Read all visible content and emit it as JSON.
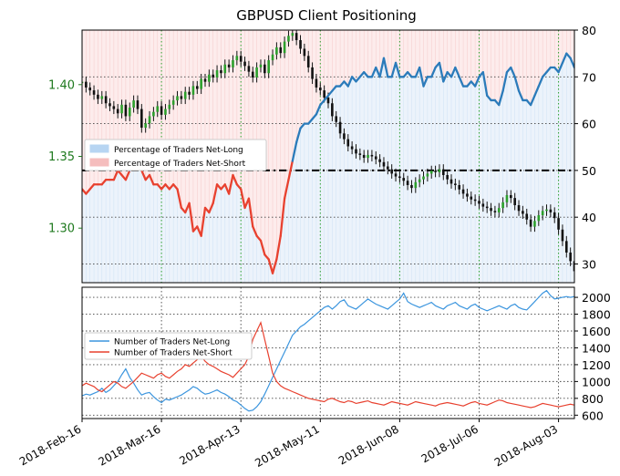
{
  "chart_data": [
    {
      "type": "line",
      "title": "GBPUSD Client Positioning",
      "legend": {
        "placement": "center-left",
        "entries": [
          {
            "label": "Percentage of Traders Net-Long",
            "color": "#9fc7ee"
          },
          {
            "label": "Percentage of Traders Net-Short",
            "color": "#f2a8a8"
          }
        ]
      },
      "y_left": {
        "ticks": [
          "1.30",
          "1.35",
          "1.40"
        ],
        "range": [
          1.262,
          1.438
        ],
        "color": "#1f7a1f"
      },
      "y_right": {
        "ticks": [
          "30",
          "40",
          "50",
          "60",
          "70",
          "80"
        ],
        "range": [
          26,
          80
        ]
      },
      "reference_line": 50,
      "x_ticks": [
        "2018-Feb-16",
        "2018-Mar-16",
        "2018-Apr-13",
        "2018-May-11",
        "2018-Jun-08",
        "2018-Jul-06",
        "2018-Aug-03"
      ],
      "n_days": 125,
      "price_close": [
        1.402,
        1.398,
        1.396,
        1.393,
        1.39,
        1.392,
        1.387,
        1.385,
        1.383,
        1.38,
        1.386,
        1.378,
        1.384,
        1.389,
        1.383,
        1.37,
        1.373,
        1.378,
        1.381,
        1.385,
        1.379,
        1.383,
        1.386,
        1.389,
        1.392,
        1.39,
        1.395,
        1.393,
        1.399,
        1.397,
        1.404,
        1.402,
        1.407,
        1.405,
        1.41,
        1.408,
        1.414,
        1.412,
        1.417,
        1.42,
        1.416,
        1.413,
        1.409,
        1.405,
        1.412,
        1.414,
        1.408,
        1.417,
        1.421,
        1.426,
        1.422,
        1.43,
        1.434,
        1.436,
        1.431,
        1.425,
        1.42,
        1.412,
        1.404,
        1.398,
        1.396,
        1.391,
        1.387,
        1.378,
        1.374,
        1.366,
        1.362,
        1.357,
        1.355,
        1.352,
        1.351,
        1.349,
        1.351,
        1.35,
        1.348,
        1.346,
        1.343,
        1.341,
        1.338,
        1.336,
        1.335,
        1.333,
        1.33,
        1.328,
        1.332,
        1.334,
        1.336,
        1.338,
        1.34,
        1.339,
        1.341,
        1.337,
        1.334,
        1.331,
        1.33,
        1.327,
        1.324,
        1.322,
        1.32,
        1.319,
        1.317,
        1.315,
        1.314,
        1.312,
        1.311,
        1.314,
        1.318,
        1.323,
        1.321,
        1.316,
        1.312,
        1.31,
        1.306,
        1.301,
        1.305,
        1.309,
        1.312,
        1.313,
        1.311,
        1.307,
        1.299,
        1.291,
        1.283,
        1.277,
        1.27
      ],
      "series": [
        {
          "name": "Percentage of Traders Net-Long",
          "y_axis": "right",
          "values": [
            46,
            45,
            46,
            47,
            47,
            47,
            48,
            48,
            48,
            50,
            49,
            48,
            50,
            52,
            51,
            50,
            48,
            49,
            47,
            47,
            46,
            47,
            46,
            47,
            46,
            42,
            41,
            43,
            37,
            38,
            36,
            42,
            41,
            43,
            47,
            46,
            47,
            45,
            49,
            47,
            46,
            42,
            44,
            38,
            36,
            35,
            32,
            31,
            28,
            31,
            36,
            44,
            48,
            52,
            56,
            59,
            60,
            60,
            61,
            62,
            64,
            65,
            66,
            67,
            68,
            68,
            69,
            68,
            70,
            69,
            70,
            71,
            70,
            70,
            72,
            70,
            74,
            70,
            70,
            73,
            70,
            70,
            71,
            70,
            70,
            72,
            68,
            70,
            70,
            72,
            73,
            69,
            71,
            70,
            72,
            70,
            68,
            68,
            69,
            68,
            70,
            71,
            66,
            65,
            65,
            64,
            67,
            71,
            72,
            70,
            67,
            65,
            65,
            64,
            66,
            68,
            70,
            71,
            72,
            72,
            71,
            73,
            75,
            74,
            72
          ]
        },
        {
          "name": "Number of Traders Net-Long",
          "values": [
            830,
            850,
            840,
            860,
            880,
            920,
            870,
            900,
            950,
            1000,
            1080,
            1150,
            1050,
            980,
            900,
            840,
            860,
            870,
            820,
            780,
            750,
            790,
            780,
            800,
            820,
            840,
            870,
            900,
            940,
            920,
            880,
            850,
            860,
            880,
            900,
            870,
            850,
            820,
            780,
            760,
            720,
            680,
            650,
            660,
            700,
            760,
            850,
            950,
            1050,
            1150,
            1250,
            1350,
            1450,
            1550,
            1600,
            1650,
            1680,
            1720,
            1760,
            1800,
            1840,
            1880,
            1900,
            1860,
            1900,
            1950,
            1970,
            1900,
            1880,
            1860,
            1900,
            1940,
            1980,
            1950,
            1920,
            1900,
            1880,
            1860,
            1900,
            1940,
            1980,
            2050,
            1950,
            1920,
            1900,
            1880,
            1900,
            1920,
            1940,
            1900,
            1880,
            1860,
            1900,
            1920,
            1940,
            1900,
            1880,
            1860,
            1900,
            1920,
            1880,
            1860,
            1840,
            1860,
            1880,
            1900,
            1880,
            1860,
            1900,
            1920,
            1880,
            1860,
            1850,
            1900,
            1950,
            2000,
            2050,
            2080,
            2020,
            1980,
            1990,
            2000,
            2010,
            2000,
            2010
          ]
        },
        {
          "name": "Number of Traders Net-Short",
          "values": [
            950,
            980,
            960,
            940,
            900,
            880,
            920,
            960,
            1000,
            980,
            940,
            920,
            960,
            1000,
            1050,
            1100,
            1080,
            1060,
            1040,
            1080,
            1100,
            1060,
            1040,
            1080,
            1120,
            1150,
            1200,
            1180,
            1220,
            1260,
            1300,
            1240,
            1200,
            1180,
            1150,
            1120,
            1100,
            1080,
            1050,
            1100,
            1150,
            1200,
            1300,
            1500,
            1600,
            1700,
            1500,
            1300,
            1100,
            1000,
            950,
            920,
            900,
            880,
            860,
            840,
            820,
            800,
            790,
            780,
            770,
            760,
            790,
            800,
            780,
            760,
            750,
            770,
            760,
            740,
            750,
            760,
            770,
            750,
            740,
            730,
            720,
            740,
            760,
            750,
            740,
            730,
            720,
            740,
            760,
            750,
            740,
            730,
            720,
            710,
            730,
            740,
            750,
            740,
            730,
            720,
            710,
            730,
            750,
            760,
            740,
            730,
            720,
            740,
            760,
            780,
            770,
            750,
            740,
            730,
            720,
            710,
            700,
            690,
            700,
            720,
            740,
            730,
            720,
            710,
            700,
            710,
            720,
            730,
            720
          ]
        }
      ],
      "y_lower": {
        "ticks": [
          "600",
          "800",
          "1000",
          "1200",
          "1400",
          "1600",
          "1800",
          "2000"
        ],
        "range": [
          560,
          2120
        ]
      }
    }
  ]
}
